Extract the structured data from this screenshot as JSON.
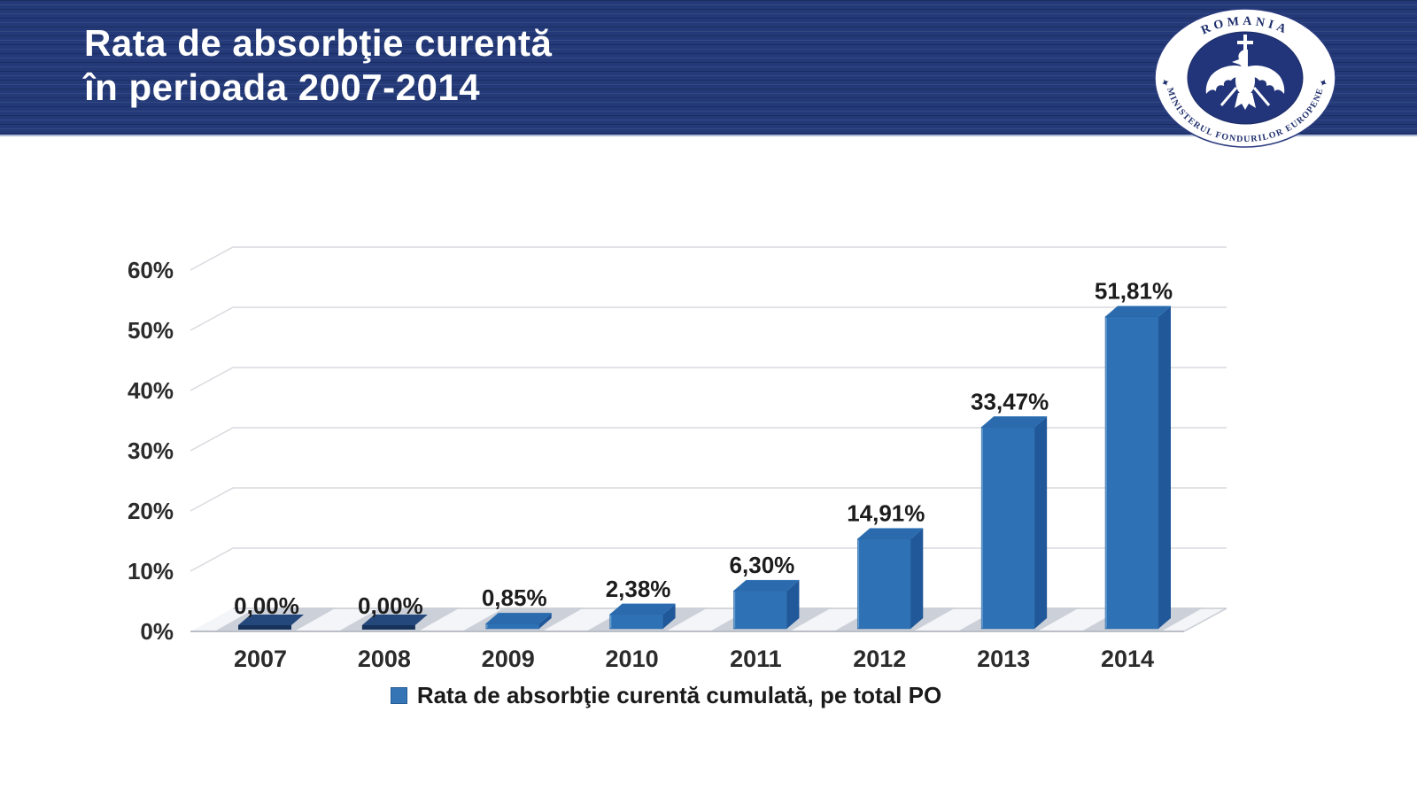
{
  "header": {
    "title_line1": "Rata de absorbţie curentă",
    "title_line2": "în perioada 2007-2014",
    "logo": {
      "top_text": "ROMANIA",
      "bottom_text": "MINISTERUL FONDURILOR EUROPENE"
    }
  },
  "chart_data": {
    "type": "bar",
    "style": "3d-column",
    "title": "Rata de absorbţie curentă în perioada 2007-2014",
    "categories": [
      "2007",
      "2008",
      "2009",
      "2010",
      "2011",
      "2012",
      "2013",
      "2014"
    ],
    "values": [
      0.0,
      0.0,
      0.85,
      2.38,
      6.3,
      14.91,
      33.47,
      51.81
    ],
    "value_labels": [
      "0,00%",
      "0,00%",
      "0,85%",
      "2,38%",
      "6,30%",
      "14,91%",
      "33,47%",
      "51,81%"
    ],
    "ytick_labels": [
      "0%",
      "10%",
      "20%",
      "30%",
      "40%",
      "50%",
      "60%"
    ],
    "ylim": [
      0,
      60
    ],
    "grid": true,
    "legend": {
      "position": "bottom",
      "label": "Rata de absorbţie curentă cumulată, pe total PO"
    },
    "colors": {
      "bar_front": "#2e72b5",
      "bar_side": "#21589a",
      "bar_top": "#2b6bad",
      "bar_edge": "#26619f",
      "bar_highlight": "#6ea3d4",
      "zero_bar_front": "#16325a",
      "zero_bar_top": "#24487c",
      "shadow": "#ccd0d8",
      "floor": "#f4f5f8",
      "gridline": "#d9dadf",
      "baseline": "#b9bec7",
      "axis_text": "#2b2b2b",
      "label_text": "#1c1c1c",
      "header_navy": "#243a78"
    }
  }
}
